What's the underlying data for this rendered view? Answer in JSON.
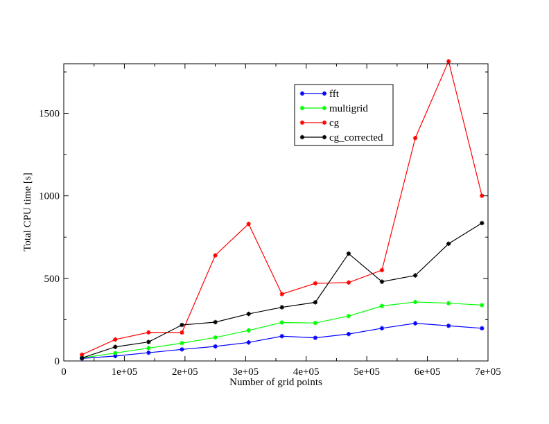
{
  "chart_data": {
    "type": "line",
    "xlabel": "Number of grid points",
    "ylabel": "Total CPU time [s]",
    "xlim": [
      0,
      700000
    ],
    "ylim": [
      0,
      1800
    ],
    "xticks": [
      0,
      100000,
      200000,
      300000,
      400000,
      500000,
      600000,
      700000
    ],
    "xtick_labels": [
      "0",
      "1e+05",
      "2e+05",
      "3e+05",
      "4e+05",
      "5e+05",
      "6e+05",
      "7e+05"
    ],
    "yticks": [
      0,
      500,
      1000,
      1500
    ],
    "ytick_labels": [
      "0",
      "500",
      "1000",
      "1500"
    ],
    "grid": false,
    "legend_position": "top-right",
    "x": [
      30000,
      85000,
      140000,
      195000,
      250000,
      305000,
      360000,
      415000,
      470000,
      525000,
      580000,
      635000,
      690000
    ],
    "series": [
      {
        "name": "fft",
        "color": "#0000ff",
        "values": [
          15,
          30,
          50,
          70,
          88,
          112,
          150,
          140,
          163,
          198,
          228,
          213,
          198
        ]
      },
      {
        "name": "multigrid",
        "color": "#00ff00",
        "values": [
          18,
          48,
          78,
          108,
          142,
          185,
          233,
          230,
          272,
          333,
          357,
          350,
          338
        ]
      },
      {
        "name": "cg",
        "color": "#ff0000",
        "values": [
          38,
          130,
          173,
          172,
          640,
          830,
          405,
          470,
          475,
          550,
          1350,
          1815,
          1000
        ]
      },
      {
        "name": "cg_corrected",
        "color": "#000000",
        "values": [
          18,
          85,
          115,
          218,
          235,
          285,
          325,
          355,
          650,
          480,
          518,
          710,
          835
        ]
      }
    ]
  }
}
